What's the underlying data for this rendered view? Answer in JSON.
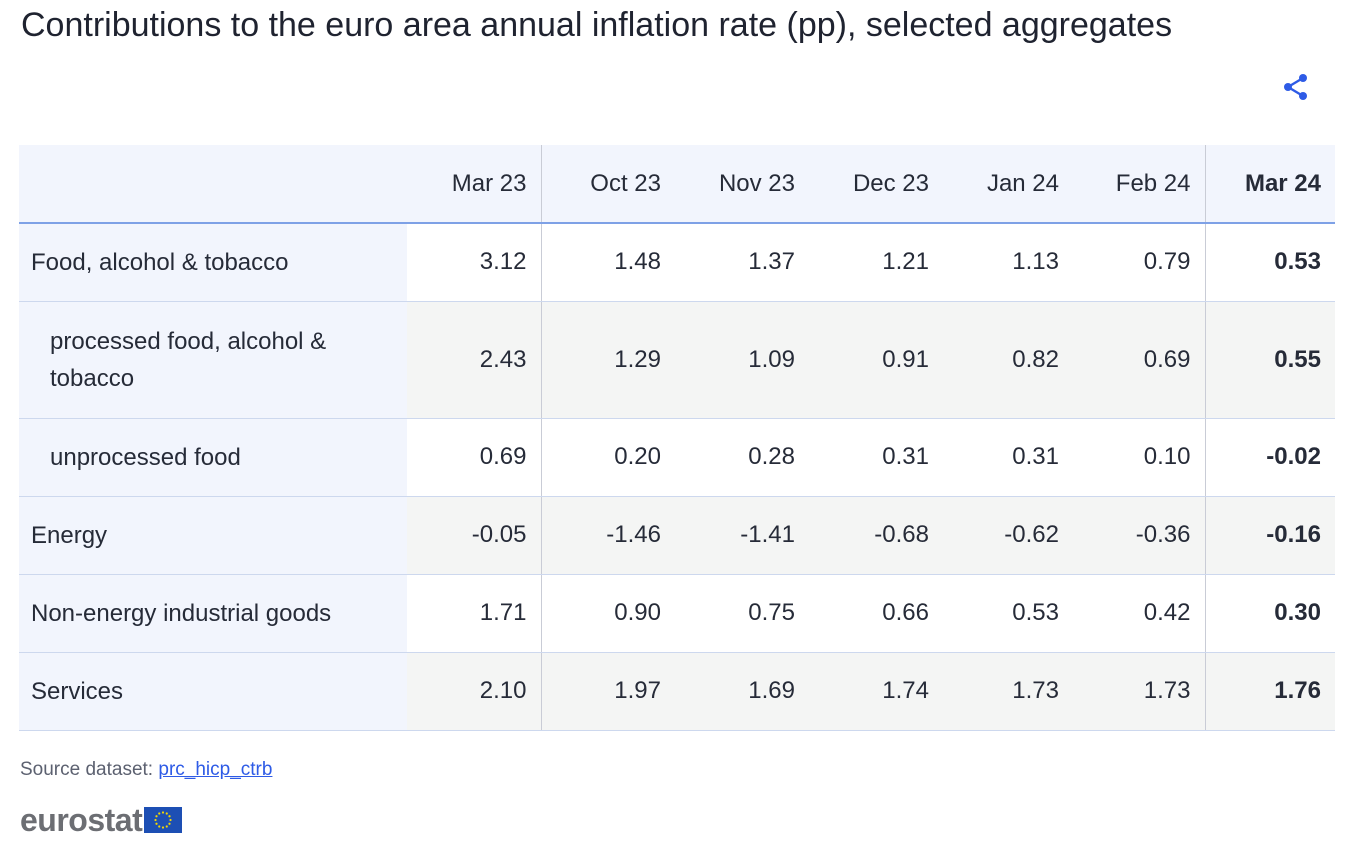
{
  "title": "Contributions to the euro area annual inflation rate (pp), selected aggregates",
  "icons": {
    "share": "share-icon",
    "flag": "eu-flag-icon"
  },
  "colors": {
    "header_background": "#f2f5fd",
    "header_rule": "#7ea1e6",
    "row_shade": "#f4f5f4",
    "link": "#2e5be6",
    "logo_text": "#6c6e73",
    "flag_blue": "#1d4fb4",
    "flag_star": "#f6d800"
  },
  "chart_data": {
    "type": "table",
    "title": "Contributions to the euro area annual inflation rate (pp), selected aggregates",
    "columns": [
      "Mar 23",
      "Oct 23",
      "Nov 23",
      "Dec 23",
      "Jan 24",
      "Feb 24",
      "Mar 24"
    ],
    "highlighted_column": "Mar 24",
    "rows": [
      {
        "label": "Food, alcohol & tobacco",
        "indent": false,
        "values": [
          "3.12",
          "1.48",
          "1.37",
          "1.21",
          "1.13",
          "0.79",
          "0.53"
        ]
      },
      {
        "label": "processed food, alcohol & tobacco",
        "indent": true,
        "values": [
          "2.43",
          "1.29",
          "1.09",
          "0.91",
          "0.82",
          "0.69",
          "0.55"
        ]
      },
      {
        "label": "unprocessed food",
        "indent": true,
        "values": [
          "0.69",
          "0.20",
          "0.28",
          "0.31",
          "0.31",
          "0.10",
          "-0.02"
        ]
      },
      {
        "label": "Energy",
        "indent": false,
        "values": [
          "-0.05",
          "-1.46",
          "-1.41",
          "-0.68",
          "-0.62",
          "-0.36",
          "-0.16"
        ]
      },
      {
        "label": "Non-energy industrial goods",
        "indent": false,
        "values": [
          "1.71",
          "0.90",
          "0.75",
          "0.66",
          "0.53",
          "0.42",
          "0.30"
        ]
      },
      {
        "label": "Services",
        "indent": false,
        "values": [
          "2.10",
          "1.97",
          "1.69",
          "1.74",
          "1.73",
          "1.73",
          "1.76"
        ]
      }
    ]
  },
  "source": {
    "label": "Source dataset:",
    "link_text": "prc_hicp_ctrb"
  },
  "logo": {
    "text": "eurostat"
  }
}
